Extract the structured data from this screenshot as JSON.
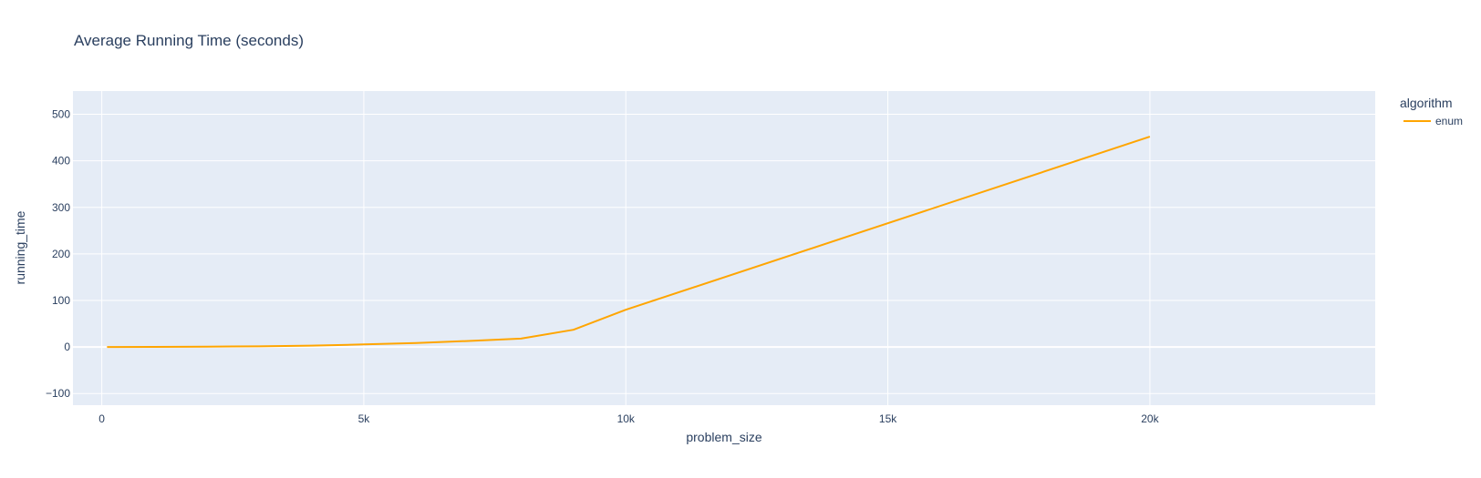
{
  "chart_data": {
    "type": "line",
    "title": "Average Running Time (seconds)",
    "xlabel": "problem_size",
    "ylabel": "running_time",
    "xlim": [
      -550,
      24300
    ],
    "ylim": [
      -125,
      550
    ],
    "x_ticks": [
      0,
      5000,
      10000,
      15000,
      20000
    ],
    "x_tick_labels": [
      "0",
      "5k",
      "10k",
      "15k",
      "20k"
    ],
    "y_ticks": [
      -100,
      0,
      100,
      200,
      300,
      400,
      500
    ],
    "y_tick_labels": [
      "−100",
      "0",
      "100",
      "200",
      "300",
      "400",
      "500"
    ],
    "grid": true,
    "legend": {
      "title": "algorithm",
      "position": "right"
    },
    "colors": {
      "plot_bg": "#e5ecf6",
      "grid": "#ffffff",
      "text": "#2a3f5f"
    },
    "series": [
      {
        "name": "enum",
        "color": "#ffa500",
        "x": [
          100,
          1000,
          2000,
          3000,
          4000,
          5000,
          6000,
          7000,
          8000,
          9000,
          10000,
          20000
        ],
        "y": [
          0,
          0.3,
          0.8,
          1.5,
          2.8,
          5.5,
          8.5,
          13,
          18,
          37,
          80,
          452
        ]
      }
    ]
  }
}
